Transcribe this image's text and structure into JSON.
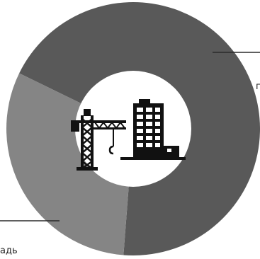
{
  "chart_data": {
    "type": "pie",
    "variant": "donut",
    "slices": [
      {
        "value": 69,
        "color": "#595959",
        "label": "п"
      },
      {
        "value": 31,
        "color": "#858585",
        "label": "адь"
      }
    ],
    "title": "",
    "legend": "none",
    "center_icon": "construction-crane-and-building-icon"
  }
}
